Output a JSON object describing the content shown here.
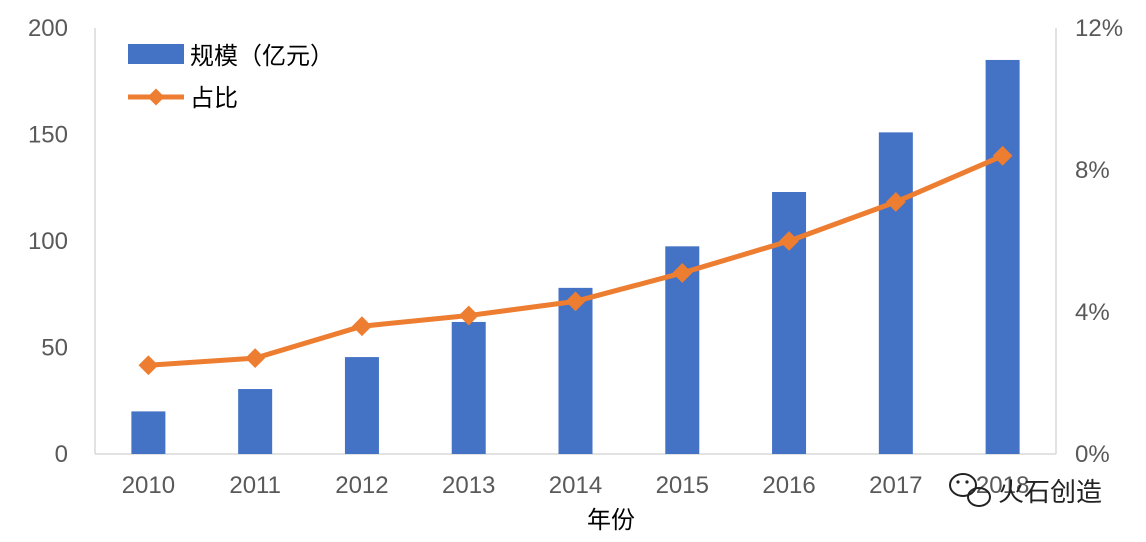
{
  "chart_data": {
    "type": "bar+line",
    "xlabel": "年份",
    "categories": [
      "2010",
      "2011",
      "2012",
      "2013",
      "2014",
      "2015",
      "2016",
      "2017",
      "2018"
    ],
    "series": [
      {
        "name": "规模（亿元）",
        "type": "bar",
        "axis": "left",
        "color": "#4472C4",
        "values": [
          20,
          30.5,
          45.5,
          62,
          78,
          97.5,
          123,
          151,
          185
        ]
      },
      {
        "name": "占比",
        "type": "line",
        "axis": "right",
        "color": "#ED7D31",
        "marker": "diamond",
        "values": [
          2.5,
          2.7,
          3.6,
          3.9,
          4.3,
          5.1,
          6.0,
          7.1,
          8.4
        ]
      }
    ],
    "y_left": {
      "ticks": [
        "0",
        "50",
        "100",
        "150",
        "200"
      ],
      "ylim": [
        0,
        200
      ]
    },
    "y_right": {
      "ticks": [
        "0%",
        "4%",
        "8%",
        "12%"
      ],
      "ylim": [
        0,
        12
      ]
    },
    "legend": {
      "placement": "top-left"
    },
    "grid": false
  },
  "watermark": {
    "text": "火石创造",
    "icon": "wechat-icon"
  }
}
